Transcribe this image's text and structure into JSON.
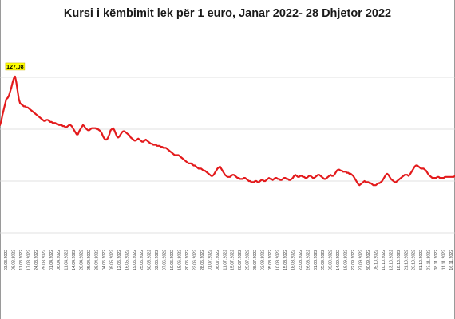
{
  "chart_data": {
    "type": "line",
    "title": "Kursi i këmbimit lek për 1 euro, Janar 2022- 28 Dhjetor 2022",
    "xlabel": "",
    "ylabel": "",
    "ylim": [
      111,
      131
    ],
    "grid": true,
    "series_color": "#e31a1c",
    "peak_label": "127.08",
    "peak_index": 12,
    "tick_labels": [
      "03.03.2022",
      "08.03.2022",
      "11.03.2022",
      "17.03.2022",
      "24.03.2022",
      "29.03.2022",
      "01.04.2022",
      "06.04.2022",
      "11.04.2022",
      "14.04.2022",
      "20.04.2022",
      "25.04.2022",
      "28.04.2022",
      "04.05.2022",
      "09.05.2022",
      "12.05.2022",
      "16.05.2022",
      "19.05.2022",
      "25.05.2022",
      "30.05.2022",
      "02.06.2022",
      "07.06.2022",
      "10.06.2022",
      "15.06.2022",
      "20.06.2022",
      "23.06.2022",
      "28.06.2022",
      "01.07.2022",
      "06.07.2022",
      "11.07.2022",
      "15.07.2022",
      "20.07.2022",
      "25.07.2022",
      "28.07.2022",
      "02.08.2022",
      "05.08.2022",
      "10.08.2022",
      "15.08.2022",
      "18.08.2022",
      "23.08.2022",
      "26.08.2022",
      "31.08.2022",
      "05.09.2022",
      "09.09.2022",
      "14.09.2022",
      "19.09.2022",
      "22.09.2022",
      "27.09.2022",
      "30.09.2022",
      "05.10.2022",
      "10.10.2022",
      "13.10.2022",
      "18.10.2022",
      "21.10.2022",
      "26.10.2022",
      "31.10.2022",
      "03.11.2022",
      "08.11.2022",
      "11.11.2022",
      "16.11.2022"
    ],
    "values": [
      122.4,
      122.8,
      123.4,
      123.9,
      124.4,
      124.9,
      125.0,
      125.2,
      125.6,
      126.0,
      126.5,
      126.9,
      127.08,
      126.5,
      125.7,
      124.9,
      124.5,
      124.4,
      124.3,
      124.2,
      124.2,
      124.1,
      124.1,
      124.0,
      123.9,
      123.8,
      123.7,
      123.6,
      123.5,
      123.4,
      123.3,
      123.2,
      123.1,
      123.0,
      122.9,
      122.8,
      122.8,
      122.9,
      122.9,
      122.8,
      122.7,
      122.7,
      122.6,
      122.6,
      122.6,
      122.5,
      122.5,
      122.4,
      122.4,
      122.4,
      122.3,
      122.3,
      122.2,
      122.2,
      122.3,
      122.4,
      122.4,
      122.3,
      122.1,
      121.9,
      121.7,
      121.5,
      121.5,
      121.8,
      122.0,
      122.2,
      122.4,
      122.3,
      122.1,
      122.0,
      121.9,
      121.9,
      122.0,
      122.1,
      122.1,
      122.1,
      122.1,
      122.0,
      122.0,
      121.9,
      121.8,
      121.6,
      121.3,
      121.1,
      121.0,
      121.0,
      121.2,
      121.5,
      121.9,
      122.0,
      122.1,
      121.9,
      121.6,
      121.3,
      121.2,
      121.3,
      121.5,
      121.7,
      121.8,
      121.8,
      121.7,
      121.6,
      121.5,
      121.4,
      121.2,
      121.1,
      121.0,
      120.9,
      120.9,
      121.0,
      121.1,
      121.0,
      120.9,
      120.8,
      120.8,
      120.9,
      121.0,
      120.9,
      120.8,
      120.7,
      120.6,
      120.6,
      120.5,
      120.5,
      120.5,
      120.4,
      120.4,
      120.4,
      120.3,
      120.3,
      120.2,
      120.2,
      120.2,
      120.1,
      120.0,
      119.9,
      119.8,
      119.7,
      119.6,
      119.5,
      119.5,
      119.5,
      119.5,
      119.4,
      119.3,
      119.2,
      119.1,
      119.0,
      118.9,
      118.8,
      118.7,
      118.7,
      118.7,
      118.6,
      118.5,
      118.5,
      118.4,
      118.3,
      118.2,
      118.2,
      118.2,
      118.1,
      118.0,
      118.0,
      117.9,
      117.8,
      117.7,
      117.6,
      117.5,
      117.5,
      117.6,
      117.8,
      118.0,
      118.2,
      118.3,
      118.4,
      118.2,
      118.0,
      117.8,
      117.6,
      117.5,
      117.4,
      117.4,
      117.4,
      117.5,
      117.6,
      117.6,
      117.5,
      117.4,
      117.3,
      117.3,
      117.2,
      117.2,
      117.2,
      117.3,
      117.3,
      117.2,
      117.1,
      117.0,
      117.0,
      116.9,
      116.9,
      116.9,
      117.0,
      117.0,
      116.9,
      116.9,
      117.0,
      117.1,
      117.1,
      117.0,
      117.0,
      117.1,
      117.2,
      117.3,
      117.2,
      117.2,
      117.1,
      117.2,
      117.3,
      117.3,
      117.2,
      117.2,
      117.1,
      117.1,
      117.2,
      117.3,
      117.3,
      117.2,
      117.2,
      117.1,
      117.1,
      117.2,
      117.3,
      117.5,
      117.6,
      117.5,
      117.4,
      117.4,
      117.5,
      117.5,
      117.4,
      117.4,
      117.3,
      117.3,
      117.4,
      117.5,
      117.5,
      117.4,
      117.3,
      117.3,
      117.4,
      117.5,
      117.6,
      117.6,
      117.5,
      117.4,
      117.3,
      117.2,
      117.2,
      117.3,
      117.4,
      117.5,
      117.6,
      117.5,
      117.5,
      117.6,
      117.8,
      118.0,
      118.1,
      118.1,
      118.0,
      118.0,
      117.9,
      117.9,
      117.9,
      117.8,
      117.8,
      117.7,
      117.7,
      117.6,
      117.5,
      117.3,
      117.1,
      116.9,
      116.7,
      116.6,
      116.7,
      116.8,
      116.9,
      117.0,
      116.9,
      116.9,
      116.9,
      116.8,
      116.8,
      116.7,
      116.6,
      116.6,
      116.6,
      116.7,
      116.8,
      116.8,
      116.9,
      117.0,
      117.2,
      117.4,
      117.6,
      117.7,
      117.6,
      117.4,
      117.2,
      117.1,
      117.0,
      116.9,
      116.9,
      117.0,
      117.1,
      117.2,
      117.3,
      117.4,
      117.5,
      117.6,
      117.6,
      117.6,
      117.5,
      117.6,
      117.8,
      118.0,
      118.2,
      118.4,
      118.5,
      118.5,
      118.4,
      118.3,
      118.2,
      118.2,
      118.2,
      118.1,
      118.0,
      117.8,
      117.6,
      117.5,
      117.4,
      117.3,
      117.3,
      117.3,
      117.3,
      117.4,
      117.4,
      117.3,
      117.3,
      117.3,
      117.3,
      117.4,
      117.4,
      117.4,
      117.4,
      117.4,
      117.4,
      117.4,
      117.4,
      117.5
    ]
  }
}
